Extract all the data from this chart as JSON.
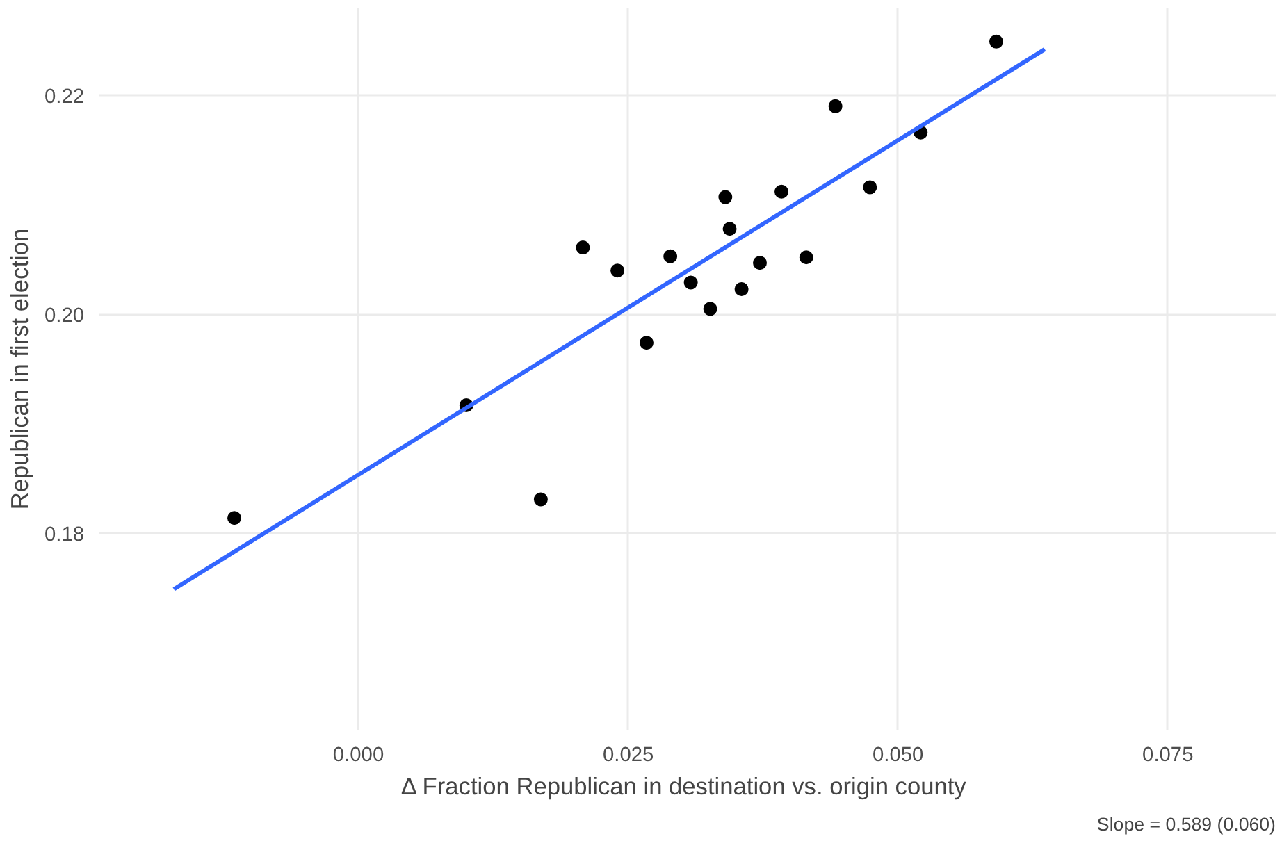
{
  "chart_data": {
    "type": "scatter",
    "xlabel": "Δ  Fraction Republican in destination vs. origin county",
    "ylabel": "Republican in first election",
    "xlim": [
      -0.024,
      0.085
    ],
    "ylim": [
      0.162,
      0.228
    ],
    "xticks": [
      {
        "value": 0,
        "label": "0.000"
      },
      {
        "value": 0.025,
        "label": "0.025"
      },
      {
        "value": 0.05,
        "label": "0.050"
      },
      {
        "value": 0.075,
        "label": "0.075"
      }
    ],
    "yticks": [
      {
        "value": 0.18,
        "label": "0.18"
      },
      {
        "value": 0.2,
        "label": "0.20"
      },
      {
        "value": 0.22,
        "label": "0.22"
      }
    ],
    "grid": true,
    "annotations": [
      "Slope = 0.589 (0.060)"
    ],
    "series": [
      {
        "marker": "circle",
        "color": "#000000",
        "x": [
          -0.0115,
          0.01,
          0.0169,
          0.0208,
          0.024,
          0.0267,
          0.0289,
          0.0308,
          0.0326,
          0.034,
          0.0344,
          0.0355,
          0.0372,
          0.0392,
          0.0415,
          0.0442,
          0.0474,
          0.0521,
          0.0591
        ],
        "values": [
          0.1814,
          0.1917,
          0.1831,
          0.2061,
          0.204,
          0.1974,
          0.2053,
          0.2029,
          0.2005,
          0.2107,
          0.2078,
          0.2023,
          0.2047,
          0.2112,
          0.2052,
          0.219,
          0.2116,
          0.2166,
          0.2249
        ]
      },
      {
        "type": "line",
        "color": "#3366ff",
        "x": [
          -0.0171,
          0.0636
        ],
        "values": [
          0.1749,
          0.2242
        ]
      }
    ]
  }
}
